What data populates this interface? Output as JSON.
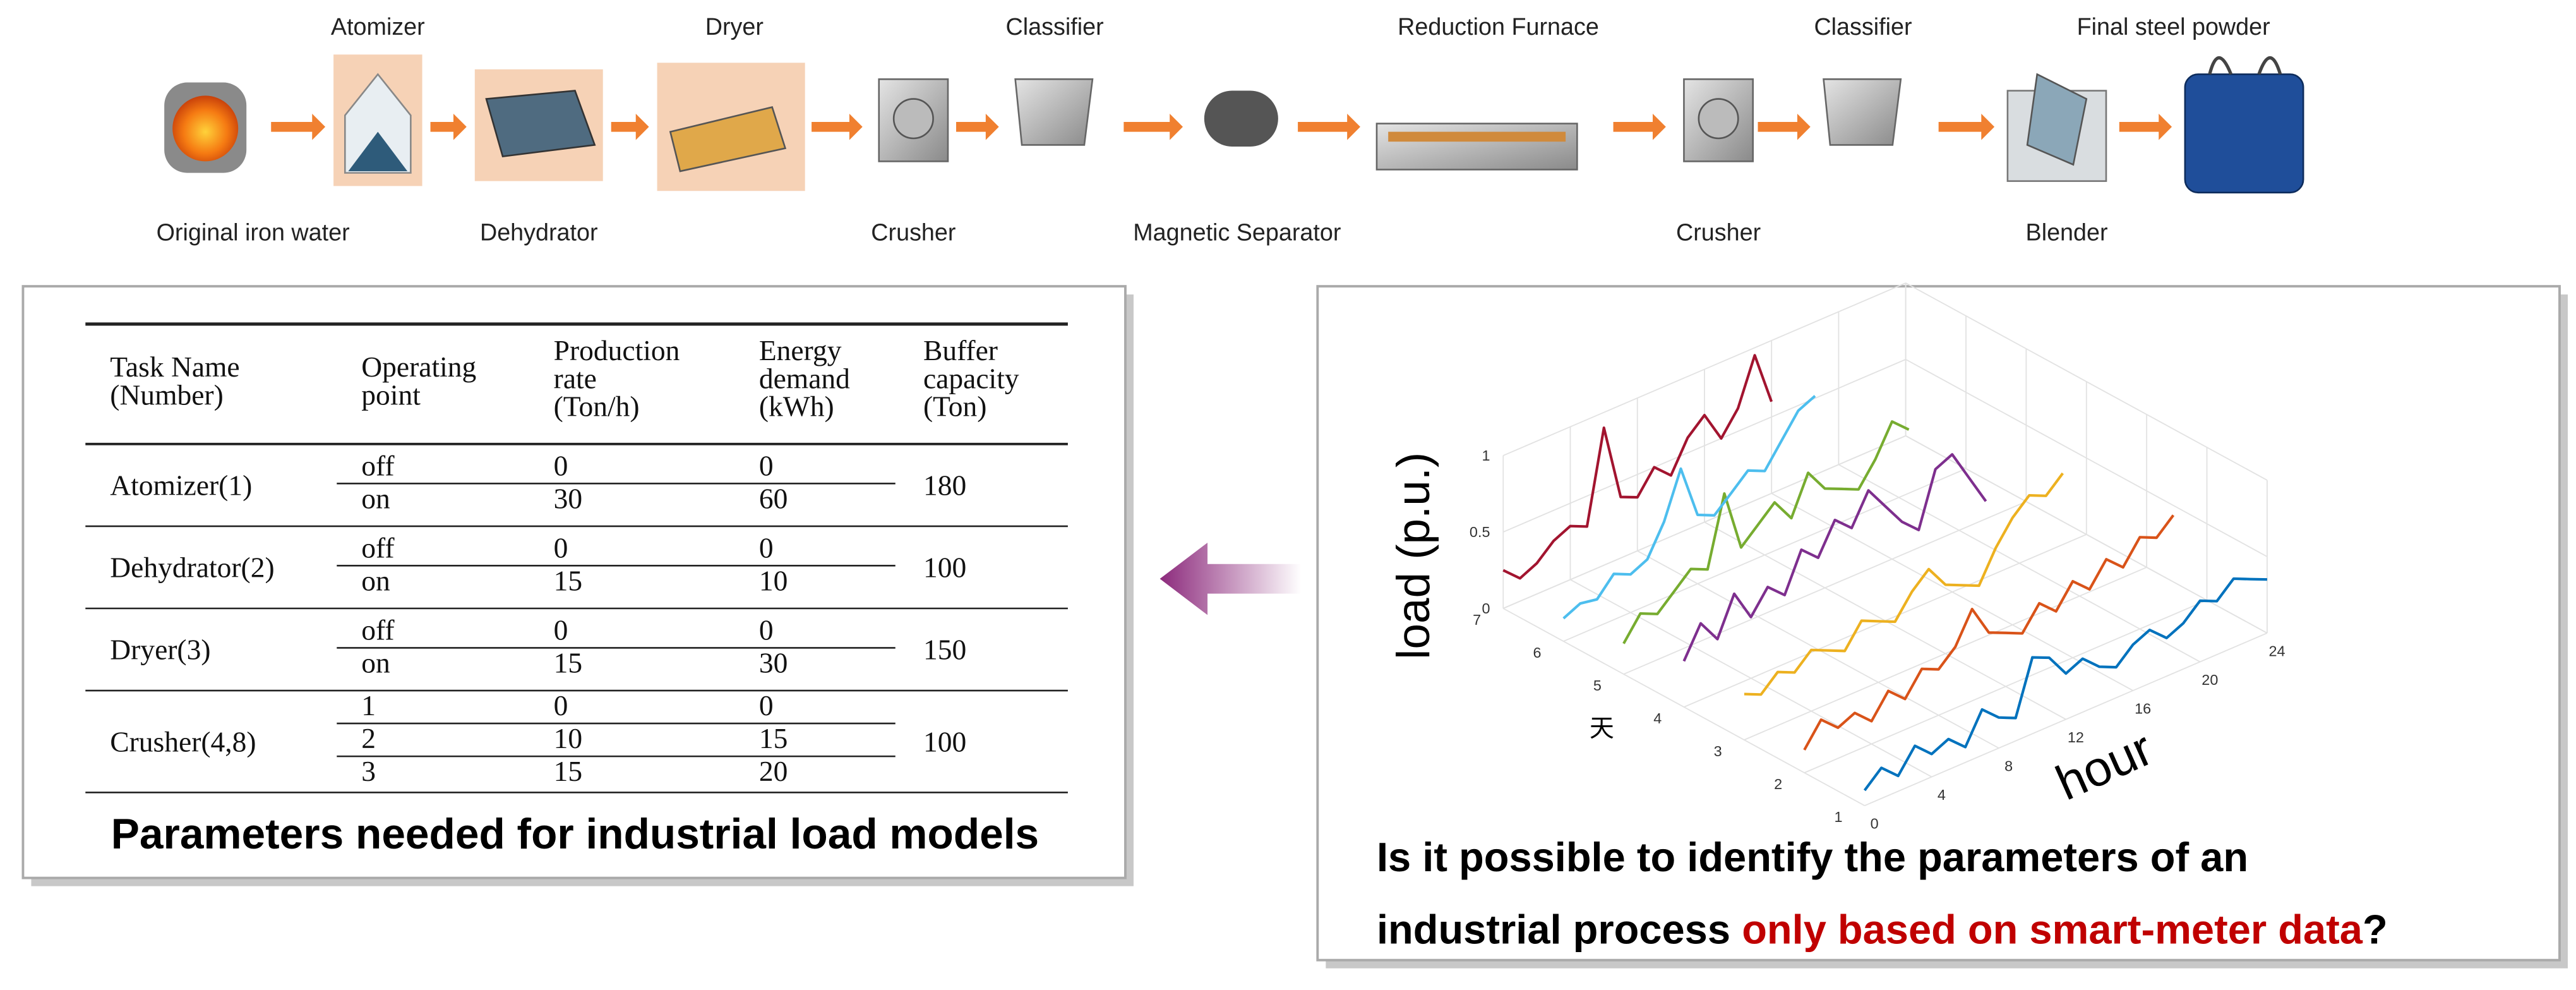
{
  "process": {
    "top_labels": [
      "Atomizer",
      "Dryer",
      "Classifier",
      "Reduction Furnace",
      "Classifier",
      "Final steel powder"
    ],
    "bottom_labels": [
      "Original iron water",
      "Dehydrator",
      "Crusher",
      "Magnetic Separator",
      "Crusher",
      "Blender"
    ]
  },
  "table": {
    "headers": [
      [
        "Task Name",
        "(Number)"
      ],
      [
        "Operating",
        "point"
      ],
      [
        "Production",
        "rate",
        "(Ton/h)"
      ],
      [
        "Energy",
        "demand",
        "(kWh)"
      ],
      [
        "Buffer",
        "capacity",
        "(Ton)"
      ]
    ],
    "rows": [
      {
        "task": "Atomizer(1)",
        "points": [
          [
            "off",
            "0",
            "0"
          ],
          [
            "on",
            "30",
            "60"
          ]
        ],
        "buffer": "180"
      },
      {
        "task": "Dehydrator(2)",
        "points": [
          [
            "off",
            "0",
            "0"
          ],
          [
            "on",
            "15",
            "10"
          ]
        ],
        "buffer": "100"
      },
      {
        "task": "Dryer(3)",
        "points": [
          [
            "off",
            "0",
            "0"
          ],
          [
            "on",
            "15",
            "30"
          ]
        ],
        "buffer": "150"
      },
      {
        "task": "Crusher(4,8)",
        "points": [
          [
            "1",
            "0",
            "0"
          ],
          [
            "2",
            "10",
            "15"
          ],
          [
            "3",
            "15",
            "20"
          ]
        ],
        "buffer": "100"
      }
    ]
  },
  "caption": "Parameters needed for industrial load models",
  "question": {
    "line1": "Is it possible to identify the parameters of an",
    "line2_start": "industrial process",
    "highlight": "only based on smart-meter data",
    "end": "?"
  },
  "chart_data": {
    "type": "line3d",
    "x_label": "hour",
    "y_label": "天",
    "z_label": "load (p.u.)",
    "x": [
      0,
      1,
      2,
      3,
      4,
      5,
      6,
      7,
      8,
      9,
      10,
      11,
      12,
      13,
      14,
      15,
      16,
      17,
      18,
      19,
      20,
      21,
      22,
      23,
      24
    ],
    "xlim": [
      0,
      24
    ],
    "xticks": [
      0,
      4,
      8,
      12,
      16,
      20,
      24
    ],
    "ylim": [
      1,
      7
    ],
    "yticks": [
      1,
      2,
      3,
      4,
      5,
      6,
      7
    ],
    "zlim": [
      0,
      1
    ],
    "zticks": [
      0,
      0.5,
      1
    ],
    "grid": true,
    "series": [
      {
        "y": 1,
        "color": "#0072bd",
        "values": [
          0.1,
          0.2,
          0.1,
          0.25,
          0.15,
          0.2,
          0.1,
          0.3,
          0.2,
          0.15,
          0.5,
          0.45,
          0.3,
          0.35,
          0.25,
          0.2,
          0.3,
          0.35,
          0.25,
          0.3,
          0.4,
          0.35,
          0.45,
          0.4,
          0.35
        ]
      },
      {
        "y": 2,
        "color": "#d95319",
        "values": [
          0.15,
          0.3,
          0.2,
          0.25,
          0.15,
          0.3,
          0.2,
          0.35,
          0.3,
          0.4,
          0.6,
          0.4,
          0.35,
          0.3,
          0.45,
          0.35,
          0.5,
          0.4,
          0.55,
          0.45,
          0.6,
          0.55,
          0.65,
          null,
          null
        ]
      },
      {
        "y": 3,
        "color": "#edb120",
        "values": [
          0.3,
          0.25,
          0.35,
          0.3,
          0.4,
          0.35,
          0.3,
          0.45,
          0.4,
          0.35,
          0.5,
          0.6,
          0.45,
          0.4,
          0.35,
          0.55,
          0.7,
          0.8,
          0.75,
          0.85,
          null,
          null,
          null,
          null,
          null
        ]
      },
      {
        "y": 4,
        "color": "#7e2f8e",
        "values": [
          0.3,
          0.5,
          0.35,
          0.6,
          0.4,
          0.55,
          0.45,
          0.7,
          0.6,
          0.8,
          0.7,
          0.9,
          0.75,
          0.6,
          0.5,
          0.85,
          0.9,
          0.7,
          0.5,
          null,
          null,
          null,
          null,
          null,
          null
        ]
      },
      {
        "y": 5,
        "color": "#77ac30",
        "values": [
          0.2,
          0.35,
          0.3,
          0.4,
          0.5,
          0.45,
          0.9,
          0.5,
          0.6,
          0.7,
          0.55,
          0.8,
          0.65,
          0.6,
          0.55,
          0.7,
          0.9,
          0.8,
          null,
          null,
          null,
          null,
          null,
          null,
          null
        ]
      },
      {
        "y": 6,
        "color": "#4dbeee",
        "values": [
          0.15,
          0.2,
          0.18,
          0.3,
          0.25,
          0.3,
          0.5,
          0.8,
          0.45,
          0.4,
          0.5,
          0.6,
          0.55,
          0.7,
          0.85,
          0.9,
          null,
          null,
          null,
          null,
          null,
          null,
          null,
          null,
          null
        ]
      },
      {
        "y": 7,
        "color": "#a2142f",
        "values": [
          0.25,
          0.15,
          0.2,
          0.3,
          0.35,
          0.3,
          0.9,
          0.4,
          0.35,
          0.5,
          0.4,
          0.6,
          0.7,
          0.5,
          0.65,
          0.95,
          0.6,
          null,
          null,
          null,
          null,
          null,
          null,
          null,
          null
        ]
      }
    ]
  }
}
